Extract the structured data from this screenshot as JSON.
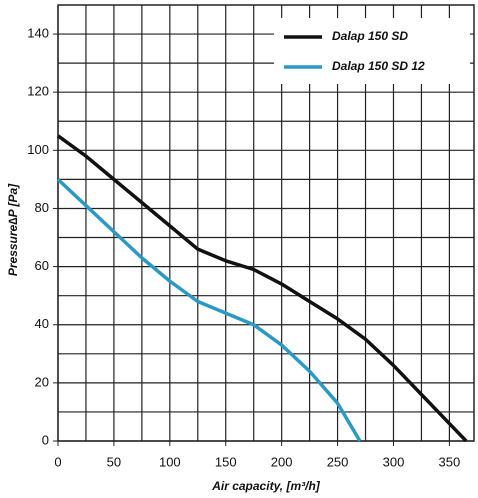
{
  "chart_data": {
    "type": "line",
    "x_label": "Air capacity, [m³/h]",
    "y_label": "Pressure∆P [Pa]",
    "xlim": [
      0,
      372
    ],
    "ylim": [
      0,
      150
    ],
    "xticks": [
      0,
      50,
      100,
      150,
      200,
      250,
      300,
      350
    ],
    "yticks": [
      0,
      20,
      40,
      60,
      80,
      100,
      120,
      140
    ],
    "xgrid": [
      0,
      25,
      50,
      75,
      100,
      125,
      150,
      175,
      200,
      225,
      250,
      275,
      300,
      325,
      350
    ],
    "ygrid": [
      0,
      10,
      20,
      30,
      40,
      50,
      60,
      70,
      80,
      90,
      100,
      110,
      120,
      130,
      140
    ],
    "legend": "top-right",
    "series": [
      {
        "name": "Dalap 150 SD",
        "color": "#111111",
        "x": [
          0,
          25,
          50,
          75,
          100,
          125,
          150,
          175,
          200,
          225,
          250,
          275,
          300,
          325,
          350,
          365
        ],
        "values": [
          105,
          98,
          90,
          82,
          74,
          66,
          62,
          59,
          54,
          48,
          42,
          35,
          26,
          16,
          6,
          0
        ]
      },
      {
        "name": "Dalap 150 SD 12",
        "color": "#2a9ac4",
        "x": [
          0,
          25,
          50,
          75,
          100,
          125,
          150,
          175,
          200,
          225,
          250,
          270
        ],
        "values": [
          90,
          81,
          72,
          63,
          55,
          48,
          44,
          40,
          33,
          24,
          13,
          0
        ]
      }
    ]
  }
}
